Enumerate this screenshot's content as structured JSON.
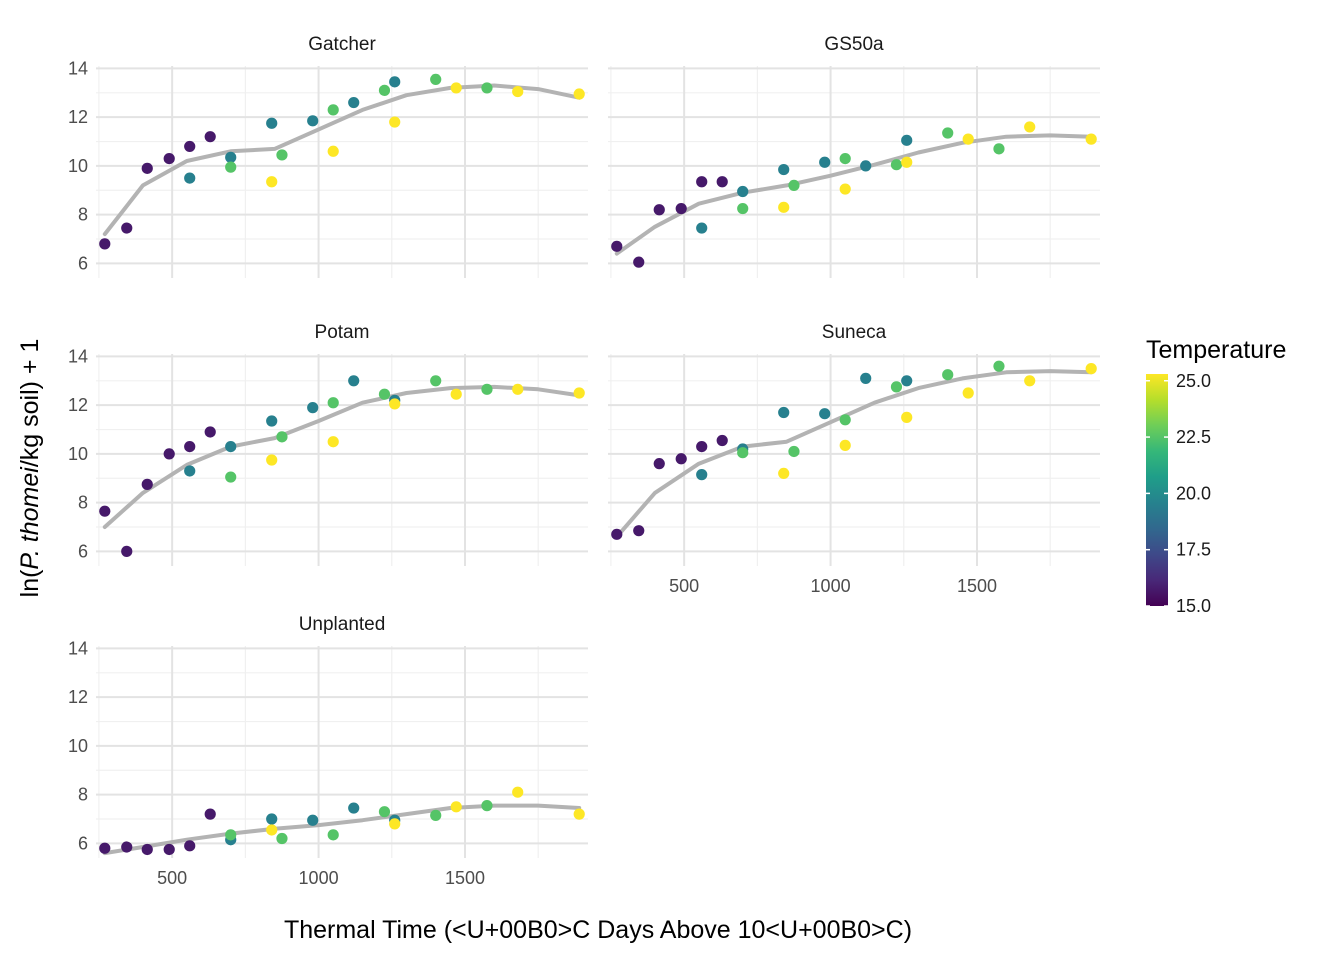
{
  "chart_data": {
    "type": "scatter",
    "xlabel": "Thermal Time (<U+00B0>C Days Above 10<U+00B0>C)",
    "ylabel_parts": [
      "ln(",
      "P. thomei",
      "/kg soil) + 1"
    ],
    "x_ticks": [
      500,
      1000,
      1500
    ],
    "x_tick_labels": [
      "500",
      "1000",
      "1500"
    ],
    "y_ticks": [
      6,
      8,
      10,
      12,
      14
    ],
    "y_tick_labels": [
      "6",
      "8",
      "10",
      "12",
      "14"
    ],
    "xlim": [
      240,
      1920
    ],
    "ylim": [
      5.4,
      14.1
    ],
    "grid": true,
    "legend": {
      "title": "Temperature",
      "placement": "right",
      "min": 15,
      "max": 25.3,
      "breaks": [
        15,
        17.5,
        20,
        22.5,
        25
      ],
      "break_labels": [
        "15.0",
        "17.5",
        "20.0",
        "22.5",
        "25.0"
      ],
      "colormap": [
        "#440154",
        "#482878",
        "#3e4989",
        "#31688e",
        "#26828e",
        "#1f9e89",
        "#35b779",
        "#6ece58",
        "#b5de2b",
        "#fde725"
      ]
    },
    "smooth_color": "#b3b3b3",
    "panels": [
      {
        "name": "Gatcher",
        "points": [
          {
            "x": 270,
            "y": 6.8,
            "t": 15.7
          },
          {
            "x": 345,
            "y": 7.45,
            "t": 15.7
          },
          {
            "x": 415,
            "y": 9.9,
            "t": 15.7
          },
          {
            "x": 490,
            "y": 10.3,
            "t": 15.7
          },
          {
            "x": 560,
            "y": 10.8,
            "t": 15.7
          },
          {
            "x": 630,
            "y": 11.2,
            "t": 15.7
          },
          {
            "x": 560,
            "y": 9.5,
            "t": 19.5
          },
          {
            "x": 700,
            "y": 10.35,
            "t": 19.5
          },
          {
            "x": 840,
            "y": 11.75,
            "t": 19.5
          },
          {
            "x": 980,
            "y": 11.85,
            "t": 19.5
          },
          {
            "x": 1120,
            "y": 12.6,
            "t": 19.5
          },
          {
            "x": 1260,
            "y": 13.45,
            "t": 19.5
          },
          {
            "x": 700,
            "y": 9.95,
            "t": 22.5
          },
          {
            "x": 875,
            "y": 10.45,
            "t": 22.5
          },
          {
            "x": 1050,
            "y": 12.3,
            "t": 22.5
          },
          {
            "x": 1225,
            "y": 13.1,
            "t": 22.5
          },
          {
            "x": 1400,
            "y": 13.55,
            "t": 22.5
          },
          {
            "x": 1575,
            "y": 13.2,
            "t": 22.5
          },
          {
            "x": 840,
            "y": 9.35,
            "t": 25.3
          },
          {
            "x": 1050,
            "y": 10.6,
            "t": 25.3
          },
          {
            "x": 1260,
            "y": 11.8,
            "t": 25.3
          },
          {
            "x": 1470,
            "y": 13.2,
            "t": 25.3
          },
          {
            "x": 1680,
            "y": 13.05,
            "t": 25.3
          },
          {
            "x": 1890,
            "y": 12.95,
            "t": 25.3
          }
        ],
        "smooth": [
          [
            270,
            7.2
          ],
          [
            400,
            9.2
          ],
          [
            550,
            10.2
          ],
          [
            700,
            10.6
          ],
          [
            850,
            10.7
          ],
          [
            1000,
            11.5
          ],
          [
            1150,
            12.3
          ],
          [
            1300,
            12.9
          ],
          [
            1450,
            13.2
          ],
          [
            1600,
            13.3
          ],
          [
            1750,
            13.15
          ],
          [
            1890,
            12.8
          ]
        ]
      },
      {
        "name": "GS50a",
        "points": [
          {
            "x": 270,
            "y": 6.7,
            "t": 15.7
          },
          {
            "x": 345,
            "y": 6.05,
            "t": 15.7
          },
          {
            "x": 415,
            "y": 8.2,
            "t": 15.7
          },
          {
            "x": 490,
            "y": 8.25,
            "t": 15.7
          },
          {
            "x": 560,
            "y": 9.35,
            "t": 15.7
          },
          {
            "x": 630,
            "y": 9.35,
            "t": 15.7
          },
          {
            "x": 560,
            "y": 7.45,
            "t": 19.5
          },
          {
            "x": 700,
            "y": 8.95,
            "t": 19.5
          },
          {
            "x": 840,
            "y": 9.85,
            "t": 19.5
          },
          {
            "x": 980,
            "y": 10.15,
            "t": 19.5
          },
          {
            "x": 1120,
            "y": 10.0,
            "t": 19.5
          },
          {
            "x": 1260,
            "y": 11.05,
            "t": 19.5
          },
          {
            "x": 700,
            "y": 8.25,
            "t": 22.5
          },
          {
            "x": 875,
            "y": 9.2,
            "t": 22.5
          },
          {
            "x": 1050,
            "y": 10.3,
            "t": 22.5
          },
          {
            "x": 1225,
            "y": 10.05,
            "t": 22.5
          },
          {
            "x": 1400,
            "y": 11.35,
            "t": 22.5
          },
          {
            "x": 1575,
            "y": 10.7,
            "t": 22.5
          },
          {
            "x": 840,
            "y": 8.3,
            "t": 25.3
          },
          {
            "x": 1050,
            "y": 9.05,
            "t": 25.3
          },
          {
            "x": 1260,
            "y": 10.15,
            "t": 25.3
          },
          {
            "x": 1470,
            "y": 11.1,
            "t": 25.3
          },
          {
            "x": 1680,
            "y": 11.6,
            "t": 25.3
          },
          {
            "x": 1890,
            "y": 11.1,
            "t": 25.3
          }
        ],
        "smooth": [
          [
            270,
            6.4
          ],
          [
            400,
            7.5
          ],
          [
            550,
            8.45
          ],
          [
            700,
            8.9
          ],
          [
            850,
            9.2
          ],
          [
            1000,
            9.6
          ],
          [
            1150,
            10.05
          ],
          [
            1300,
            10.55
          ],
          [
            1450,
            10.95
          ],
          [
            1600,
            11.2
          ],
          [
            1750,
            11.25
          ],
          [
            1890,
            11.2
          ]
        ]
      },
      {
        "name": "Potam",
        "points": [
          {
            "x": 270,
            "y": 7.65,
            "t": 15.7
          },
          {
            "x": 345,
            "y": 6.0,
            "t": 15.7
          },
          {
            "x": 415,
            "y": 8.75,
            "t": 15.7
          },
          {
            "x": 490,
            "y": 10.0,
            "t": 15.7
          },
          {
            "x": 560,
            "y": 10.3,
            "t": 15.7
          },
          {
            "x": 630,
            "y": 10.9,
            "t": 15.7
          },
          {
            "x": 560,
            "y": 9.3,
            "t": 19.5
          },
          {
            "x": 700,
            "y": 10.3,
            "t": 19.5
          },
          {
            "x": 840,
            "y": 11.35,
            "t": 19.5
          },
          {
            "x": 980,
            "y": 11.9,
            "t": 19.5
          },
          {
            "x": 1120,
            "y": 13.0,
            "t": 19.5
          },
          {
            "x": 1260,
            "y": 12.2,
            "t": 19.5
          },
          {
            "x": 700,
            "y": 9.05,
            "t": 22.5
          },
          {
            "x": 875,
            "y": 10.7,
            "t": 22.5
          },
          {
            "x": 1050,
            "y": 12.1,
            "t": 22.5
          },
          {
            "x": 1225,
            "y": 12.45,
            "t": 22.5
          },
          {
            "x": 1400,
            "y": 13.0,
            "t": 22.5
          },
          {
            "x": 1575,
            "y": 12.65,
            "t": 22.5
          },
          {
            "x": 840,
            "y": 9.75,
            "t": 25.3
          },
          {
            "x": 1050,
            "y": 10.5,
            "t": 25.3
          },
          {
            "x": 1260,
            "y": 12.05,
            "t": 25.3
          },
          {
            "x": 1470,
            "y": 12.45,
            "t": 25.3
          },
          {
            "x": 1680,
            "y": 12.65,
            "t": 25.3
          },
          {
            "x": 1890,
            "y": 12.5,
            "t": 25.3
          }
        ],
        "smooth": [
          [
            270,
            7.0
          ],
          [
            400,
            8.4
          ],
          [
            550,
            9.55
          ],
          [
            700,
            10.3
          ],
          [
            850,
            10.65
          ],
          [
            1000,
            11.35
          ],
          [
            1150,
            12.1
          ],
          [
            1300,
            12.5
          ],
          [
            1450,
            12.7
          ],
          [
            1600,
            12.75
          ],
          [
            1750,
            12.65
          ],
          [
            1890,
            12.4
          ]
        ]
      },
      {
        "name": "Suneca",
        "points": [
          {
            "x": 270,
            "y": 6.7,
            "t": 15.7
          },
          {
            "x": 345,
            "y": 6.85,
            "t": 15.7
          },
          {
            "x": 415,
            "y": 9.6,
            "t": 15.7
          },
          {
            "x": 490,
            "y": 9.8,
            "t": 15.7
          },
          {
            "x": 560,
            "y": 10.3,
            "t": 15.7
          },
          {
            "x": 630,
            "y": 10.55,
            "t": 15.7
          },
          {
            "x": 560,
            "y": 9.15,
            "t": 19.5
          },
          {
            "x": 700,
            "y": 10.2,
            "t": 19.5
          },
          {
            "x": 840,
            "y": 11.7,
            "t": 19.5
          },
          {
            "x": 980,
            "y": 11.65,
            "t": 19.5
          },
          {
            "x": 1120,
            "y": 13.1,
            "t": 19.5
          },
          {
            "x": 1260,
            "y": 13.0,
            "t": 19.5
          },
          {
            "x": 700,
            "y": 10.05,
            "t": 22.5
          },
          {
            "x": 875,
            "y": 10.1,
            "t": 22.5
          },
          {
            "x": 1050,
            "y": 11.4,
            "t": 22.5
          },
          {
            "x": 1225,
            "y": 12.75,
            "t": 22.5
          },
          {
            "x": 1400,
            "y": 13.25,
            "t": 22.5
          },
          {
            "x": 1575,
            "y": 13.6,
            "t": 22.5
          },
          {
            "x": 840,
            "y": 9.2,
            "t": 25.3
          },
          {
            "x": 1050,
            "y": 10.35,
            "t": 25.3
          },
          {
            "x": 1260,
            "y": 11.5,
            "t": 25.3
          },
          {
            "x": 1470,
            "y": 12.5,
            "t": 25.3
          },
          {
            "x": 1680,
            "y": 13.0,
            "t": 25.3
          },
          {
            "x": 1890,
            "y": 13.5,
            "t": 25.3
          }
        ],
        "smooth": [
          [
            270,
            6.6
          ],
          [
            400,
            8.4
          ],
          [
            550,
            9.6
          ],
          [
            700,
            10.3
          ],
          [
            850,
            10.5
          ],
          [
            1000,
            11.3
          ],
          [
            1150,
            12.1
          ],
          [
            1300,
            12.7
          ],
          [
            1450,
            13.1
          ],
          [
            1600,
            13.35
          ],
          [
            1750,
            13.4
          ],
          [
            1890,
            13.35
          ]
        ]
      },
      {
        "name": "Unplanted",
        "points": [
          {
            "x": 270,
            "y": 5.8,
            "t": 15.7
          },
          {
            "x": 345,
            "y": 5.85,
            "t": 15.7
          },
          {
            "x": 415,
            "y": 5.75,
            "t": 15.7
          },
          {
            "x": 490,
            "y": 5.75,
            "t": 15.7
          },
          {
            "x": 560,
            "y": 5.9,
            "t": 15.7
          },
          {
            "x": 630,
            "y": 7.2,
            "t": 15.7
          },
          {
            "x": 700,
            "y": 6.15,
            "t": 19.5
          },
          {
            "x": 840,
            "y": 7.0,
            "t": 19.5
          },
          {
            "x": 980,
            "y": 6.95,
            "t": 19.5
          },
          {
            "x": 1120,
            "y": 7.45,
            "t": 19.5
          },
          {
            "x": 1260,
            "y": 6.95,
            "t": 19.5
          },
          {
            "x": 700,
            "y": 6.35,
            "t": 22.5
          },
          {
            "x": 875,
            "y": 6.2,
            "t": 22.5
          },
          {
            "x": 1050,
            "y": 6.35,
            "t": 22.5
          },
          {
            "x": 1225,
            "y": 7.3,
            "t": 22.5
          },
          {
            "x": 1400,
            "y": 7.15,
            "t": 22.5
          },
          {
            "x": 1575,
            "y": 7.55,
            "t": 22.5
          },
          {
            "x": 840,
            "y": 6.55,
            "t": 25.3
          },
          {
            "x": 1260,
            "y": 6.8,
            "t": 25.3
          },
          {
            "x": 1470,
            "y": 7.5,
            "t": 25.3
          },
          {
            "x": 1680,
            "y": 8.1,
            "t": 25.3
          },
          {
            "x": 1890,
            "y": 7.2,
            "t": 25.3
          }
        ],
        "smooth": [
          [
            270,
            5.6
          ],
          [
            400,
            5.85
          ],
          [
            550,
            6.15
          ],
          [
            700,
            6.4
          ],
          [
            850,
            6.6
          ],
          [
            1000,
            6.75
          ],
          [
            1150,
            6.95
          ],
          [
            1300,
            7.2
          ],
          [
            1450,
            7.45
          ],
          [
            1600,
            7.55
          ],
          [
            1750,
            7.55
          ],
          [
            1890,
            7.45
          ]
        ]
      }
    ]
  }
}
